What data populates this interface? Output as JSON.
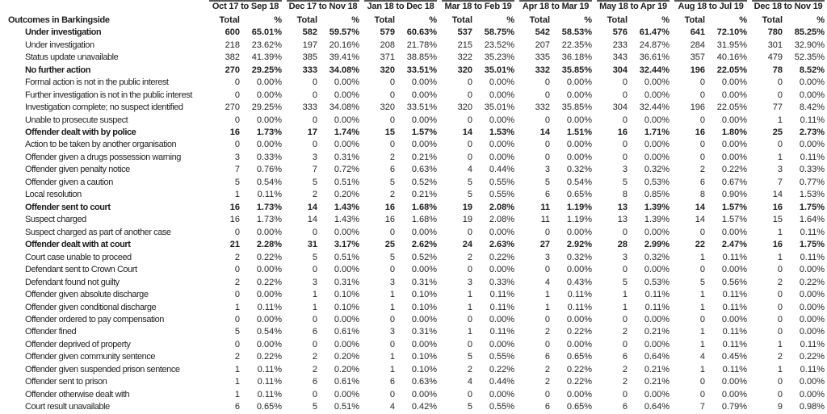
{
  "table": {
    "corner_label": "Outcomes in Barkingside",
    "periods": [
      "Oct 17 to Sep 18",
      "Dec 17 to Nov 18",
      "Jan 18 to Dec 18",
      "Mar 18 to Feb 19",
      "Apr 18 to Mar 19",
      "May 18 to Apr 19",
      "Aug 18 to Jul 19",
      "Dec 18 to Nov 19"
    ],
    "sub_headers": {
      "total": "Total",
      "pct": "%"
    },
    "rows": [
      {
        "label": "Under investigation",
        "bold": true,
        "cells": [
          [
            "600",
            "65.01%"
          ],
          [
            "582",
            "59.57%"
          ],
          [
            "579",
            "60.63%"
          ],
          [
            "537",
            "58.75%"
          ],
          [
            "542",
            "58.53%"
          ],
          [
            "576",
            "61.47%"
          ],
          [
            "641",
            "72.10%"
          ],
          [
            "780",
            "85.25%"
          ]
        ]
      },
      {
        "label": "Under investigation",
        "bold": false,
        "cells": [
          [
            "218",
            "23.62%"
          ],
          [
            "197",
            "20.16%"
          ],
          [
            "208",
            "21.78%"
          ],
          [
            "215",
            "23.52%"
          ],
          [
            "207",
            "22.35%"
          ],
          [
            "233",
            "24.87%"
          ],
          [
            "284",
            "31.95%"
          ],
          [
            "301",
            "32.90%"
          ]
        ]
      },
      {
        "label": "Status update unavailable",
        "bold": false,
        "cells": [
          [
            "382",
            "41.39%"
          ],
          [
            "385",
            "39.41%"
          ],
          [
            "371",
            "38.85%"
          ],
          [
            "322",
            "35.23%"
          ],
          [
            "335",
            "36.18%"
          ],
          [
            "343",
            "36.61%"
          ],
          [
            "357",
            "40.16%"
          ],
          [
            "479",
            "52.35%"
          ]
        ]
      },
      {
        "label": "No further action",
        "bold": true,
        "cells": [
          [
            "270",
            "29.25%"
          ],
          [
            "333",
            "34.08%"
          ],
          [
            "320",
            "33.51%"
          ],
          [
            "320",
            "35.01%"
          ],
          [
            "332",
            "35.85%"
          ],
          [
            "304",
            "32.44%"
          ],
          [
            "196",
            "22.05%"
          ],
          [
            "78",
            "8.52%"
          ]
        ]
      },
      {
        "label": "Formal action is not in the public interest",
        "bold": false,
        "cells": [
          [
            "0",
            "0.00%"
          ],
          [
            "0",
            "0.00%"
          ],
          [
            "0",
            "0.00%"
          ],
          [
            "0",
            "0.00%"
          ],
          [
            "0",
            "0.00%"
          ],
          [
            "0",
            "0.00%"
          ],
          [
            "0",
            "0.00%"
          ],
          [
            "0",
            "0.00%"
          ]
        ]
      },
      {
        "label": "Further investigation is not in the public interest",
        "bold": false,
        "cells": [
          [
            "0",
            "0.00%"
          ],
          [
            "0",
            "0.00%"
          ],
          [
            "0",
            "0.00%"
          ],
          [
            "0",
            "0.00%"
          ],
          [
            "0",
            "0.00%"
          ],
          [
            "0",
            "0.00%"
          ],
          [
            "0",
            "0.00%"
          ],
          [
            "0",
            "0.00%"
          ]
        ]
      },
      {
        "label": "Investigation complete; no suspect identified",
        "bold": false,
        "cells": [
          [
            "270",
            "29.25%"
          ],
          [
            "333",
            "34.08%"
          ],
          [
            "320",
            "33.51%"
          ],
          [
            "320",
            "35.01%"
          ],
          [
            "332",
            "35.85%"
          ],
          [
            "304",
            "32.44%"
          ],
          [
            "196",
            "22.05%"
          ],
          [
            "77",
            "8.42%"
          ]
        ]
      },
      {
        "label": "Unable to prosecute suspect",
        "bold": false,
        "cells": [
          [
            "0",
            "0.00%"
          ],
          [
            "0",
            "0.00%"
          ],
          [
            "0",
            "0.00%"
          ],
          [
            "0",
            "0.00%"
          ],
          [
            "0",
            "0.00%"
          ],
          [
            "0",
            "0.00%"
          ],
          [
            "0",
            "0.00%"
          ],
          [
            "1",
            "0.11%"
          ]
        ]
      },
      {
        "label": "Offender dealt with by police",
        "bold": true,
        "cells": [
          [
            "16",
            "1.73%"
          ],
          [
            "17",
            "1.74%"
          ],
          [
            "15",
            "1.57%"
          ],
          [
            "14",
            "1.53%"
          ],
          [
            "14",
            "1.51%"
          ],
          [
            "16",
            "1.71%"
          ],
          [
            "16",
            "1.80%"
          ],
          [
            "25",
            "2.73%"
          ]
        ]
      },
      {
        "label": "Action to be taken by another organisation",
        "bold": false,
        "cells": [
          [
            "0",
            "0.00%"
          ],
          [
            "0",
            "0.00%"
          ],
          [
            "0",
            "0.00%"
          ],
          [
            "0",
            "0.00%"
          ],
          [
            "0",
            "0.00%"
          ],
          [
            "0",
            "0.00%"
          ],
          [
            "0",
            "0.00%"
          ],
          [
            "0",
            "0.00%"
          ]
        ]
      },
      {
        "label": "Offender given a drugs possession warning",
        "bold": false,
        "cells": [
          [
            "3",
            "0.33%"
          ],
          [
            "3",
            "0.31%"
          ],
          [
            "2",
            "0.21%"
          ],
          [
            "0",
            "0.00%"
          ],
          [
            "0",
            "0.00%"
          ],
          [
            "0",
            "0.00%"
          ],
          [
            "0",
            "0.00%"
          ],
          [
            "1",
            "0.11%"
          ]
        ]
      },
      {
        "label": "Offender given penalty notice",
        "bold": false,
        "cells": [
          [
            "7",
            "0.76%"
          ],
          [
            "7",
            "0.72%"
          ],
          [
            "6",
            "0.63%"
          ],
          [
            "4",
            "0.44%"
          ],
          [
            "3",
            "0.32%"
          ],
          [
            "3",
            "0.32%"
          ],
          [
            "2",
            "0.22%"
          ],
          [
            "3",
            "0.33%"
          ]
        ]
      },
      {
        "label": "Offender given a caution",
        "bold": false,
        "cells": [
          [
            "5",
            "0.54%"
          ],
          [
            "5",
            "0.51%"
          ],
          [
            "5",
            "0.52%"
          ],
          [
            "5",
            "0.55%"
          ],
          [
            "5",
            "0.54%"
          ],
          [
            "5",
            "0.53%"
          ],
          [
            "6",
            "0.67%"
          ],
          [
            "7",
            "0.77%"
          ]
        ]
      },
      {
        "label": "Local resolution",
        "bold": false,
        "cells": [
          [
            "1",
            "0.11%"
          ],
          [
            "2",
            "0.20%"
          ],
          [
            "2",
            "0.21%"
          ],
          [
            "5",
            "0.55%"
          ],
          [
            "6",
            "0.65%"
          ],
          [
            "8",
            "0.85%"
          ],
          [
            "8",
            "0.90%"
          ],
          [
            "14",
            "1.53%"
          ]
        ]
      },
      {
        "label": "Offender sent to court",
        "bold": true,
        "cells": [
          [
            "16",
            "1.73%"
          ],
          [
            "14",
            "1.43%"
          ],
          [
            "16",
            "1.68%"
          ],
          [
            "19",
            "2.08%"
          ],
          [
            "11",
            "1.19%"
          ],
          [
            "13",
            "1.39%"
          ],
          [
            "14",
            "1.57%"
          ],
          [
            "16",
            "1.75%"
          ]
        ]
      },
      {
        "label": "Suspect charged",
        "bold": false,
        "cells": [
          [
            "16",
            "1.73%"
          ],
          [
            "14",
            "1.43%"
          ],
          [
            "16",
            "1.68%"
          ],
          [
            "19",
            "2.08%"
          ],
          [
            "11",
            "1.19%"
          ],
          [
            "13",
            "1.39%"
          ],
          [
            "14",
            "1.57%"
          ],
          [
            "15",
            "1.64%"
          ]
        ]
      },
      {
        "label": "Suspect charged as part of another case",
        "bold": false,
        "cells": [
          [
            "0",
            "0.00%"
          ],
          [
            "0",
            "0.00%"
          ],
          [
            "0",
            "0.00%"
          ],
          [
            "0",
            "0.00%"
          ],
          [
            "0",
            "0.00%"
          ],
          [
            "0",
            "0.00%"
          ],
          [
            "0",
            "0.00%"
          ],
          [
            "1",
            "0.11%"
          ]
        ]
      },
      {
        "label": "Offender dealt with at court",
        "bold": true,
        "cells": [
          [
            "21",
            "2.28%"
          ],
          [
            "31",
            "3.17%"
          ],
          [
            "25",
            "2.62%"
          ],
          [
            "24",
            "2.63%"
          ],
          [
            "27",
            "2.92%"
          ],
          [
            "28",
            "2.99%"
          ],
          [
            "22",
            "2.47%"
          ],
          [
            "16",
            "1.75%"
          ]
        ]
      },
      {
        "label": "Court case unable to proceed",
        "bold": false,
        "cells": [
          [
            "2",
            "0.22%"
          ],
          [
            "5",
            "0.51%"
          ],
          [
            "5",
            "0.52%"
          ],
          [
            "2",
            "0.22%"
          ],
          [
            "3",
            "0.32%"
          ],
          [
            "3",
            "0.32%"
          ],
          [
            "1",
            "0.11%"
          ],
          [
            "1",
            "0.11%"
          ]
        ]
      },
      {
        "label": "Defendant sent to Crown Court",
        "bold": false,
        "cells": [
          [
            "0",
            "0.00%"
          ],
          [
            "0",
            "0.00%"
          ],
          [
            "0",
            "0.00%"
          ],
          [
            "0",
            "0.00%"
          ],
          [
            "0",
            "0.00%"
          ],
          [
            "0",
            "0.00%"
          ],
          [
            "0",
            "0.00%"
          ],
          [
            "0",
            "0.00%"
          ]
        ]
      },
      {
        "label": "Defendant found not guilty",
        "bold": false,
        "cells": [
          [
            "2",
            "0.22%"
          ],
          [
            "3",
            "0.31%"
          ],
          [
            "3",
            "0.31%"
          ],
          [
            "3",
            "0.33%"
          ],
          [
            "4",
            "0.43%"
          ],
          [
            "5",
            "0.53%"
          ],
          [
            "5",
            "0.56%"
          ],
          [
            "2",
            "0.22%"
          ]
        ]
      },
      {
        "label": "Offender given absolute discharge",
        "bold": false,
        "cells": [
          [
            "0",
            "0.00%"
          ],
          [
            "1",
            "0.10%"
          ],
          [
            "1",
            "0.10%"
          ],
          [
            "1",
            "0.11%"
          ],
          [
            "1",
            "0.11%"
          ],
          [
            "1",
            "0.11%"
          ],
          [
            "1",
            "0.11%"
          ],
          [
            "0",
            "0.00%"
          ]
        ]
      },
      {
        "label": "Offender given conditional discharge",
        "bold": false,
        "cells": [
          [
            "1",
            "0.11%"
          ],
          [
            "1",
            "0.10%"
          ],
          [
            "1",
            "0.10%"
          ],
          [
            "1",
            "0.11%"
          ],
          [
            "1",
            "0.11%"
          ],
          [
            "1",
            "0.11%"
          ],
          [
            "1",
            "0.11%"
          ],
          [
            "0",
            "0.00%"
          ]
        ]
      },
      {
        "label": "Offender ordered to pay compensation",
        "bold": false,
        "cells": [
          [
            "0",
            "0.00%"
          ],
          [
            "0",
            "0.00%"
          ],
          [
            "0",
            "0.00%"
          ],
          [
            "0",
            "0.00%"
          ],
          [
            "0",
            "0.00%"
          ],
          [
            "0",
            "0.00%"
          ],
          [
            "0",
            "0.00%"
          ],
          [
            "0",
            "0.00%"
          ]
        ]
      },
      {
        "label": "Offender fined",
        "bold": false,
        "cells": [
          [
            "5",
            "0.54%"
          ],
          [
            "6",
            "0.61%"
          ],
          [
            "3",
            "0.31%"
          ],
          [
            "1",
            "0.11%"
          ],
          [
            "2",
            "0.22%"
          ],
          [
            "2",
            "0.21%"
          ],
          [
            "1",
            "0.11%"
          ],
          [
            "0",
            "0.00%"
          ]
        ]
      },
      {
        "label": "Offender deprived of property",
        "bold": false,
        "cells": [
          [
            "0",
            "0.00%"
          ],
          [
            "0",
            "0.00%"
          ],
          [
            "0",
            "0.00%"
          ],
          [
            "0",
            "0.00%"
          ],
          [
            "0",
            "0.00%"
          ],
          [
            "0",
            "0.00%"
          ],
          [
            "1",
            "0.11%"
          ],
          [
            "1",
            "0.11%"
          ]
        ]
      },
      {
        "label": "Offender given community sentence",
        "bold": false,
        "cells": [
          [
            "2",
            "0.22%"
          ],
          [
            "2",
            "0.20%"
          ],
          [
            "1",
            "0.10%"
          ],
          [
            "5",
            "0.55%"
          ],
          [
            "6",
            "0.65%"
          ],
          [
            "6",
            "0.64%"
          ],
          [
            "4",
            "0.45%"
          ],
          [
            "2",
            "0.22%"
          ]
        ]
      },
      {
        "label": "Offender given suspended prison sentence",
        "bold": false,
        "cells": [
          [
            "1",
            "0.11%"
          ],
          [
            "2",
            "0.20%"
          ],
          [
            "1",
            "0.10%"
          ],
          [
            "2",
            "0.22%"
          ],
          [
            "2",
            "0.22%"
          ],
          [
            "2",
            "0.21%"
          ],
          [
            "1",
            "0.11%"
          ],
          [
            "1",
            "0.11%"
          ]
        ]
      },
      {
        "label": "Offender sent to prison",
        "bold": false,
        "cells": [
          [
            "1",
            "0.11%"
          ],
          [
            "6",
            "0.61%"
          ],
          [
            "6",
            "0.63%"
          ],
          [
            "4",
            "0.44%"
          ],
          [
            "2",
            "0.22%"
          ],
          [
            "2",
            "0.21%"
          ],
          [
            "0",
            "0.00%"
          ],
          [
            "0",
            "0.00%"
          ]
        ]
      },
      {
        "label": "Offender otherwise dealt with",
        "bold": false,
        "cells": [
          [
            "1",
            "0.11%"
          ],
          [
            "0",
            "0.00%"
          ],
          [
            "0",
            "0.00%"
          ],
          [
            "0",
            "0.00%"
          ],
          [
            "0",
            "0.00%"
          ],
          [
            "0",
            "0.00%"
          ],
          [
            "0",
            "0.00%"
          ],
          [
            "0",
            "0.00%"
          ]
        ]
      },
      {
        "label": "Court result unavailable",
        "bold": false,
        "cells": [
          [
            "6",
            "0.65%"
          ],
          [
            "5",
            "0.51%"
          ],
          [
            "4",
            "0.42%"
          ],
          [
            "5",
            "0.55%"
          ],
          [
            "6",
            "0.65%"
          ],
          [
            "6",
            "0.64%"
          ],
          [
            "7",
            "0.79%"
          ],
          [
            "9",
            "0.98%"
          ]
        ]
      }
    ]
  }
}
